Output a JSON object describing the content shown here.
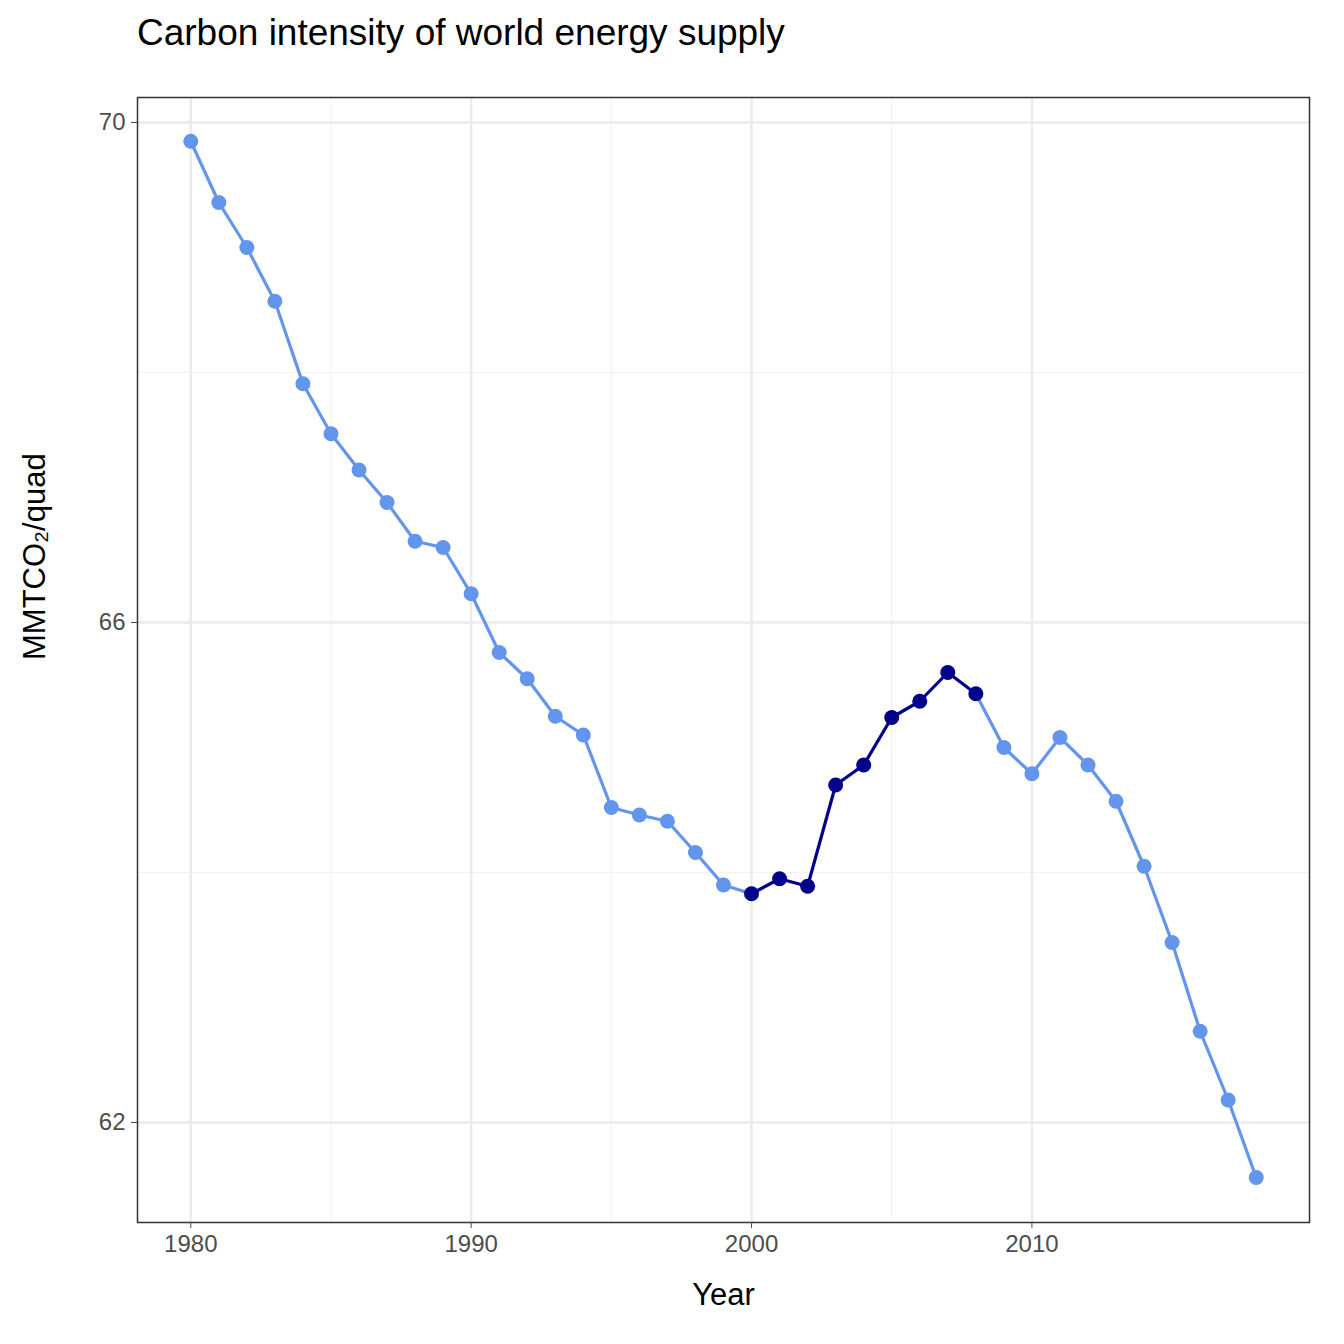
{
  "chart_data": {
    "type": "line",
    "title": "Carbon intensity of world energy supply",
    "x_label": "Year",
    "y_label": "MMTCO₂/quad",
    "x": [
      1980,
      1981,
      1982,
      1983,
      1984,
      1985,
      1986,
      1987,
      1988,
      1989,
      1990,
      1991,
      1992,
      1993,
      1994,
      1995,
      1996,
      1997,
      1998,
      1999,
      2000,
      2001,
      2002,
      2003,
      2004,
      2005,
      2006,
      2007,
      2008,
      2009,
      2010,
      2011,
      2012,
      2013,
      2014,
      2015,
      2016,
      2017,
      2018
    ],
    "values": [
      69.85,
      69.36,
      69.0,
      68.57,
      67.91,
      67.51,
      67.22,
      66.96,
      66.65,
      66.6,
      66.23,
      65.76,
      65.55,
      65.25,
      65.1,
      64.52,
      64.46,
      64.41,
      64.16,
      63.9,
      63.83,
      63.95,
      63.89,
      64.7,
      64.86,
      65.24,
      65.37,
      65.6,
      65.43,
      65.0,
      64.79,
      65.08,
      64.86,
      64.57,
      64.05,
      63.44,
      62.73,
      62.18,
      61.56
    ],
    "color": "#6495ED",
    "colors": [
      "#6495ED",
      "#6495ED",
      "#6495ED",
      "#6495ED",
      "#6495ED",
      "#6495ED",
      "#6495ED",
      "#6495ED",
      "#6495ED",
      "#6495ED",
      "#6495ED",
      "#6495ED",
      "#6495ED",
      "#6495ED",
      "#6495ED",
      "#6495ED",
      "#6495ED",
      "#6495ED",
      "#6495ED",
      "#6495ED",
      "#00008B",
      "#00008B",
      "#00008B",
      "#00008B",
      "#00008B",
      "#00008B",
      "#00008B",
      "#00008B",
      "#00008B",
      "#6495ED",
      "#6495ED",
      "#6495ED",
      "#6495ED",
      "#6495ED",
      "#6495ED",
      "#6495ED",
      "#6495ED",
      "#6495ED",
      "#6495ED"
    ],
    "marker": "circle",
    "xlim": [
      1978.1,
      2019.9
    ],
    "xticks": [
      1980,
      1990,
      2000,
      2010
    ],
    "ylim": [
      61.2,
      70.2
    ],
    "yticks": [
      62,
      66,
      70
    ],
    "grid": true
  }
}
